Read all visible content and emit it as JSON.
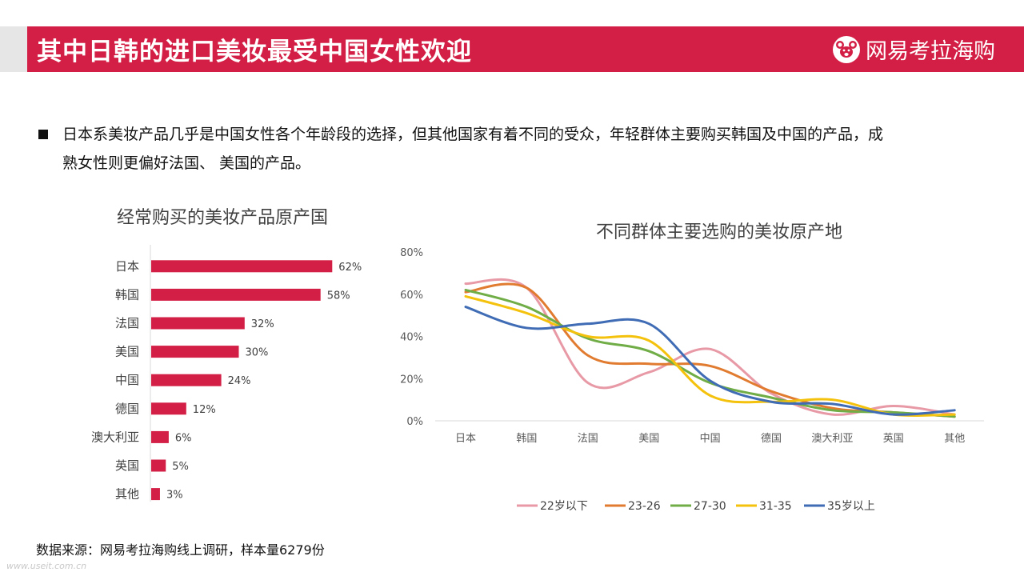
{
  "header": {
    "title": "其中日韩的进口美妆最受中国女性欢迎",
    "brand": "网易考拉海购",
    "brand_color": "#d31f45"
  },
  "bullet": {
    "text": "日本系美妆产品几乎是中国女性各个年龄段的选择，但其他国家有着不同的受众，年轻群体主要购买韩国及中国的产品，成\n熟女性则更偏好法国、 美国的产品。"
  },
  "footer": {
    "source": "数据来源：网易考拉海购线上调研，样本量6279份",
    "watermark": "www.useit.com.cn"
  },
  "chart_data": [
    {
      "type": "bar",
      "orientation": "horizontal",
      "title": "经常购买的美妆产品原产国",
      "categories": [
        "日本",
        "韩国",
        "法国",
        "美国",
        "中国",
        "德国",
        "澳大利亚",
        "英国",
        "其他"
      ],
      "values": [
        62,
        58,
        32,
        30,
        24,
        12,
        6,
        5,
        3
      ],
      "labels": [
        "62%",
        "58%",
        "32%",
        "30%",
        "24%",
        "12%",
        "6%",
        "5%",
        "3%"
      ],
      "color": "#d31f45",
      "grid": false
    },
    {
      "type": "line",
      "smooth": true,
      "title": "不同群体主要选购的美妆原产地",
      "categories": [
        "日本",
        "韩国",
        "法国",
        "美国",
        "中国",
        "德国",
        "澳大利亚",
        "英国",
        "其他"
      ],
      "y_ticks": [
        "0%",
        "20%",
        "40%",
        "60%",
        "80%"
      ],
      "ylim": [
        0,
        80
      ],
      "grid": false,
      "legend_position": "bottom",
      "series": [
        {
          "name": "22岁以下",
          "color": "#e899a6",
          "values": [
            65,
            63,
            18,
            23,
            34,
            13,
            3,
            7,
            3
          ]
        },
        {
          "name": "23-26",
          "color": "#e07b30",
          "values": [
            61,
            63,
            31,
            27,
            26,
            14,
            6,
            4,
            2
          ]
        },
        {
          "name": "27-30",
          "color": "#70ad47",
          "values": [
            62,
            54,
            39,
            33,
            18,
            11,
            5,
            4,
            2
          ]
        },
        {
          "name": "31-35",
          "color": "#f4c20d",
          "values": [
            59,
            51,
            40,
            38,
            12,
            9,
            10,
            3,
            3
          ]
        },
        {
          "name": "35岁以上",
          "color": "#3f6cb4",
          "values": [
            54,
            44,
            46,
            46,
            19,
            9,
            8,
            3,
            5
          ]
        }
      ]
    }
  ]
}
